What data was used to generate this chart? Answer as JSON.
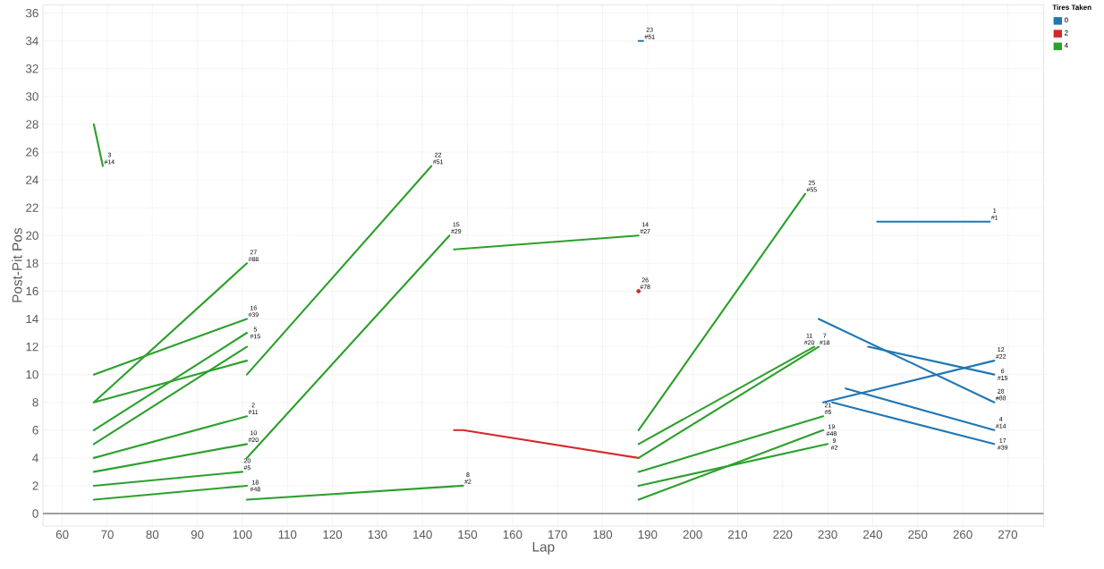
{
  "chart_data": {
    "type": "line",
    "xlabel": "Lap",
    "ylabel": "Post-Pit Pos",
    "legend_title": "Tires Taken",
    "legend": "top right",
    "grid": true,
    "marker": "none",
    "xlim": [
      55.7,
      278
    ],
    "ylim": [
      -0.9,
      36.6
    ],
    "xticks": [
      60,
      70,
      80,
      90,
      100,
      110,
      120,
      130,
      140,
      150,
      160,
      170,
      180,
      190,
      200,
      210,
      220,
      230,
      240,
      250,
      260,
      270
    ],
    "yticks": [
      0,
      2,
      4,
      6,
      8,
      10,
      12,
      14,
      16,
      18,
      20,
      22,
      24,
      26,
      28,
      30,
      32,
      34,
      36
    ],
    "ref_lines": [
      {
        "axis": "y",
        "value": 0,
        "color": "#808080"
      }
    ],
    "series": [
      {
        "name": "0",
        "color": "#1f77b4",
        "x": [
          188,
          189
        ],
        "values": [
          34,
          34
        ]
      },
      {
        "name": "2",
        "color": "#d62728",
        "x": [
          147,
          149,
          188
        ],
        "values": [
          6,
          6,
          4
        ]
      },
      {
        "name": "4",
        "color": "#2ca02c",
        "x": [
          67,
          69
        ],
        "values": [
          28,
          25
        ]
      },
      {
        "color": "#1f77b4",
        "x": [
          228,
          267
        ],
        "values": [
          14,
          8
        ]
      },
      {
        "color": "#1f77b4",
        "x": [
          239,
          267
        ],
        "values": [
          12,
          10
        ]
      },
      {
        "color": "#1f77b4",
        "x": [
          229,
          267
        ],
        "values": [
          8,
          11
        ]
      },
      {
        "color": "#1f77b4",
        "x": [
          234,
          267
        ],
        "values": [
          9,
          6
        ]
      },
      {
        "color": "#1f77b4",
        "x": [
          231,
          267
        ],
        "values": [
          8,
          5
        ]
      },
      {
        "color": "#1f77b4",
        "x": [
          241,
          266
        ],
        "values": [
          21,
          21
        ]
      },
      {
        "color": "#2ca02c",
        "x": [
          67,
          101
        ],
        "values": [
          10,
          14
        ]
      },
      {
        "color": "#2ca02c",
        "x": [
          67,
          101
        ],
        "values": [
          8,
          18
        ]
      },
      {
        "color": "#2ca02c",
        "x": [
          67,
          101
        ],
        "values": [
          6,
          13
        ]
      },
      {
        "color": "#2ca02c",
        "x": [
          67,
          101
        ],
        "values": [
          5,
          12
        ]
      },
      {
        "color": "#2ca02c",
        "x": [
          67,
          101
        ],
        "values": [
          8,
          11
        ]
      },
      {
        "color": "#2ca02c",
        "x": [
          67,
          101
        ],
        "values": [
          4,
          7
        ]
      },
      {
        "color": "#2ca02c",
        "x": [
          67,
          101
        ],
        "values": [
          3,
          5
        ]
      },
      {
        "color": "#2ca02c",
        "x": [
          67,
          100
        ],
        "values": [
          2,
          3
        ]
      },
      {
        "color": "#2ca02c",
        "x": [
          67,
          101
        ],
        "values": [
          1,
          2
        ]
      },
      {
        "color": "#2ca02c",
        "x": [
          101,
          142
        ],
        "values": [
          10,
          25
        ]
      },
      {
        "color": "#2ca02c",
        "x": [
          101,
          146
        ],
        "values": [
          4,
          20
        ]
      },
      {
        "color": "#2ca02c",
        "x": [
          101,
          149
        ],
        "values": [
          1,
          2
        ]
      },
      {
        "color": "#2ca02c",
        "x": [
          147,
          188
        ],
        "values": [
          19,
          20
        ]
      },
      {
        "color": "#2ca02c",
        "x": [
          188,
          225
        ],
        "values": [
          6,
          23
        ]
      },
      {
        "color": "#2ca02c",
        "x": [
          188,
          227
        ],
        "values": [
          5,
          12
        ]
      },
      {
        "color": "#2ca02c",
        "x": [
          188,
          228
        ],
        "values": [
          4,
          12
        ]
      },
      {
        "color": "#2ca02c",
        "x": [
          188,
          229
        ],
        "values": [
          3,
          7
        ]
      },
      {
        "color": "#2ca02c",
        "x": [
          188,
          230
        ],
        "values": [
          2,
          5
        ]
      },
      {
        "color": "#2ca02c",
        "x": [
          188,
          229
        ],
        "values": [
          1,
          6
        ]
      },
      {
        "color": "#d62728",
        "type": "scatter",
        "x": [
          188
        ],
        "values": [
          16
        ]
      }
    ],
    "annotations": [
      {
        "text": "3",
        "x": 69,
        "y": 25
      },
      {
        "text": "#14",
        "x": 69,
        "y": 25
      },
      {
        "text": "27",
        "x": 101,
        "y": 18
      },
      {
        "text": "#88",
        "x": 101,
        "y": 18
      },
      {
        "text": "16",
        "x": 101,
        "y": 14
      },
      {
        "text": "#39",
        "x": 101,
        "y": 14
      },
      {
        "text": "5",
        "x": 101,
        "y": 13
      },
      {
        "text": "#15",
        "x": 101,
        "y": 13
      },
      {
        "text": "2",
        "x": 101,
        "y": 7
      },
      {
        "text": "#11",
        "x": 101,
        "y": 7
      },
      {
        "text": "10",
        "x": 101,
        "y": 5
      },
      {
        "text": "#20",
        "x": 101,
        "y": 5
      },
      {
        "text": "20",
        "x": 100,
        "y": 3
      },
      {
        "text": "#5",
        "x": 100,
        "y": 3
      },
      {
        "text": "18",
        "x": 101,
        "y": 2
      },
      {
        "text": "#48",
        "x": 101,
        "y": 2
      },
      {
        "text": "22",
        "x": 142,
        "y": 25
      },
      {
        "text": "#51",
        "x": 142,
        "y": 25
      },
      {
        "text": "15",
        "x": 146,
        "y": 20
      },
      {
        "text": "#29",
        "x": 146,
        "y": 20
      },
      {
        "text": "8",
        "x": 149,
        "y": 2
      },
      {
        "text": "#2",
        "x": 149,
        "y": 2
      },
      {
        "text": "23",
        "x": 189,
        "y": 34
      },
      {
        "text": "#51",
        "x": 189,
        "y": 34
      },
      {
        "text": "14",
        "x": 188,
        "y": 20
      },
      {
        "text": "#27",
        "x": 188,
        "y": 20
      },
      {
        "text": "26",
        "x": 188,
        "y": 16
      },
      {
        "text": "#78",
        "x": 188,
        "y": 16
      },
      {
        "text": "25",
        "x": 225,
        "y": 23
      },
      {
        "text": "#55",
        "x": 225,
        "y": 23
      },
      {
        "text": "11",
        "x": 227,
        "y": 12
      },
      {
        "text": "#20",
        "x": 227,
        "y": 12
      },
      {
        "text": "7",
        "x": 228,
        "y": 12
      },
      {
        "text": "#18",
        "x": 228,
        "y": 12
      },
      {
        "text": "21",
        "x": 229,
        "y": 7
      },
      {
        "text": "#5",
        "x": 229,
        "y": 7
      },
      {
        "text": "19",
        "x": 229,
        "y": 6
      },
      {
        "text": "#48",
        "x": 229,
        "y": 6
      },
      {
        "text": "9",
        "x": 230,
        "y": 5
      },
      {
        "text": "#2",
        "x": 230,
        "y": 5
      },
      {
        "text": "1",
        "x": 266,
        "y": 21
      },
      {
        "text": "#1",
        "x": 266,
        "y": 21
      },
      {
        "text": "12",
        "x": 267,
        "y": 11
      },
      {
        "text": "#22",
        "x": 267,
        "y": 11
      },
      {
        "text": "6",
        "x": 267,
        "y": 10
      },
      {
        "text": "#15",
        "x": 267,
        "y": 10
      },
      {
        "text": "28",
        "x": 267,
        "y": 8
      },
      {
        "text": "#88",
        "x": 267,
        "y": 8
      },
      {
        "text": "4",
        "x": 267,
        "y": 6
      },
      {
        "text": "#14",
        "x": 267,
        "y": 6
      },
      {
        "text": "17",
        "x": 267,
        "y": 5
      },
      {
        "text": "#39",
        "x": 267,
        "y": 5
      }
    ]
  }
}
